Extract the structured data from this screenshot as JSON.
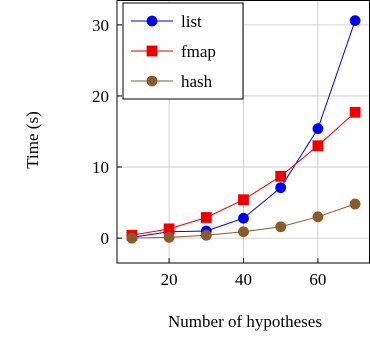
{
  "chart_data": {
    "type": "line",
    "title": "",
    "xlabel": "Number of hypotheses",
    "ylabel": "Time (s)",
    "xlim": [
      6,
      74
    ],
    "ylim": [
      -3.5,
      33.5
    ],
    "xticks": [
      20,
      40,
      60
    ],
    "yticks": [
      0,
      10,
      20,
      30
    ],
    "grid": true,
    "legend_position": "top-left",
    "x": [
      10,
      20,
      30,
      40,
      50,
      60,
      70
    ],
    "series": [
      {
        "name": "list",
        "color": "#0000ee",
        "marker": "circle",
        "values": [
          0.1,
          0.9,
          1.0,
          2.8,
          7.1,
          15.4,
          30.6
        ]
      },
      {
        "name": "fmap",
        "color": "#ee0000",
        "marker": "square",
        "values": [
          0.4,
          1.3,
          2.9,
          5.4,
          8.7,
          13.0,
          17.7
        ]
      },
      {
        "name": "hash",
        "color": "#8b5a2b",
        "marker": "circle",
        "values": [
          0.0,
          0.1,
          0.4,
          0.9,
          1.6,
          3.0,
          4.8
        ]
      }
    ]
  }
}
